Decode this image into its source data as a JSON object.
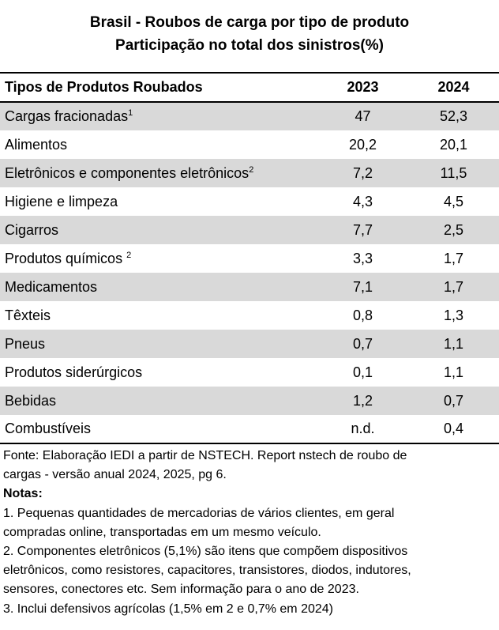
{
  "chart_data": {
    "type": "table",
    "title": "Brasil - Roubos de carga por tipo de produto",
    "subtitle": "Participação no total dos sinistros(%)",
    "columns": [
      "Tipos de Produtos Roubados",
      "2023",
      "2024"
    ],
    "rows": [
      {
        "label": "Cargas fracionadas",
        "sup": "1",
        "v2023": "47",
        "v2024": "52,3"
      },
      {
        "label": "Alimentos",
        "sup": "",
        "v2023": "20,2",
        "v2024": "20,1"
      },
      {
        "label": "Eletrônicos e componentes eletrônicos",
        "sup": "2",
        "v2023": "7,2",
        "v2024": "11,5"
      },
      {
        "label": "Higiene e limpeza",
        "sup": "",
        "v2023": "4,3",
        "v2024": "4,5"
      },
      {
        "label": "Cigarros",
        "sup": "",
        "v2023": "7,7",
        "v2024": "2,5"
      },
      {
        "label": "Produtos químicos ",
        "sup": "2",
        "v2023": "3,3",
        "v2024": "1,7"
      },
      {
        "label": "Medicamentos",
        "sup": "",
        "v2023": "7,1",
        "v2024": "1,7"
      },
      {
        "label": "Têxteis",
        "sup": "",
        "v2023": "0,8",
        "v2024": "1,3"
      },
      {
        "label": "Pneus",
        "sup": "",
        "v2023": "0,7",
        "v2024": "1,1"
      },
      {
        "label": "Produtos siderúrgicos",
        "sup": "",
        "v2023": "0,1",
        "v2024": "1,1"
      },
      {
        "label": "Bebidas",
        "sup": "",
        "v2023": "1,2",
        "v2024": "0,7"
      },
      {
        "label": "Combustíveis",
        "sup": "",
        "v2023": "n.d.",
        "v2024": "0,4"
      }
    ],
    "row_shading_color": "#d9d9d9"
  },
  "footer": {
    "source_line1": "Fonte: Elaboração IEDI a partir de NSTECH. Report nstech de roubo de",
    "source_line2": "cargas - versão anual 2024, 2025, pg 6.",
    "notes_title": "Notas:",
    "lines": [
      "1. Pequenas quantidades de mercadorias de vários clientes, em geral",
      "compradas online, transportadas em um mesmo veículo.",
      "2. Componentes eletrônicos (5,1%) são itens que compõem dispositivos",
      "eletrônicos, como resistores, capacitores, transistores, diodos, indutores,",
      "sensores, conectores etc. Sem informação para o ano de 2023.",
      "3. Inclui defensivos agrícolas (1,5% em 2 e 0,7% em 2024)"
    ]
  }
}
